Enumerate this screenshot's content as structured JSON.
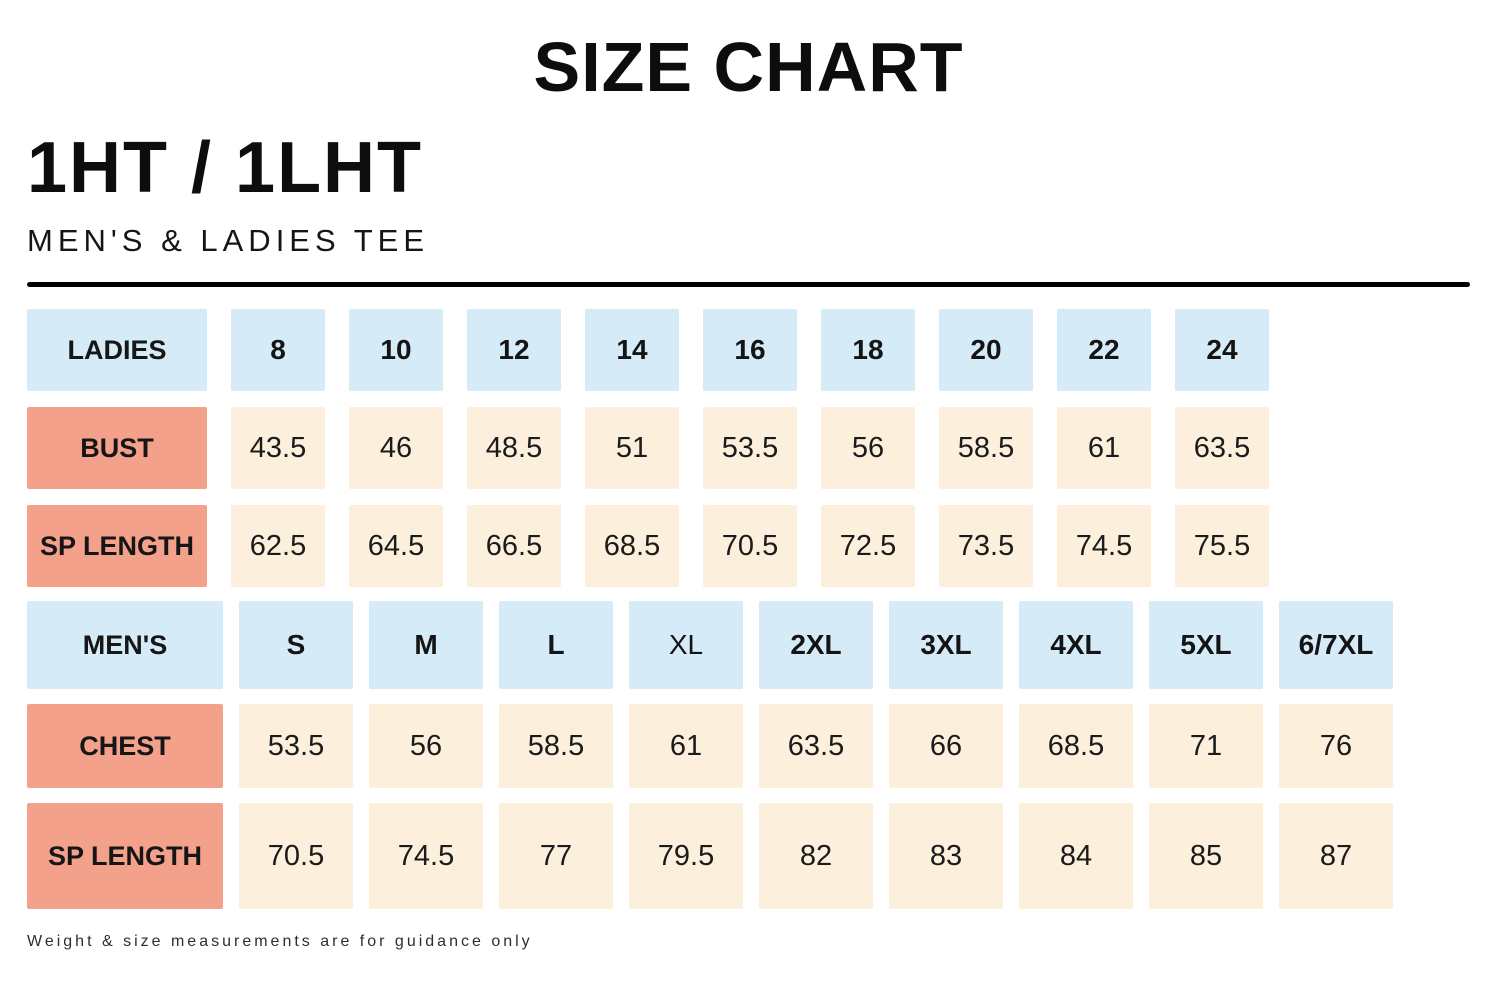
{
  "header": {
    "title": "SIZE CHART",
    "product_code": "1HT / 1LHT",
    "subtitle": "MEN'S & LADIES TEE"
  },
  "colors": {
    "size_header_cell": "#d5ebf8",
    "measurement_label_cell": "#f4a18c",
    "value_cell": "#fcf0dd",
    "text": "#111111",
    "divider": "#000000"
  },
  "ladies_table": {
    "size_row": {
      "label": "LADIES",
      "sizes": [
        "8",
        "10",
        "12",
        "14",
        "16",
        "18",
        "20",
        "22",
        "24"
      ]
    },
    "bust_row": {
      "label": "BUST",
      "values": [
        "43.5",
        "46",
        "48.5",
        "51",
        "53.5",
        "56",
        "58.5",
        "61",
        "63.5"
      ]
    },
    "sp_length_row": {
      "label": "SP LENGTH",
      "values": [
        "62.5",
        "64.5",
        "66.5",
        "68.5",
        "70.5",
        "72.5",
        "73.5",
        "74.5",
        "75.5"
      ]
    }
  },
  "mens_table": {
    "size_row": {
      "label": "MEN'S",
      "sizes": [
        "S",
        "M",
        "L",
        "XL",
        "2XL",
        "3XL",
        "4XL",
        "5XL",
        "6/7XL"
      ]
    },
    "chest_row": {
      "label": "CHEST",
      "values": [
        "53.5",
        "56",
        "58.5",
        "61",
        "63.5",
        "66",
        "68.5",
        "71",
        "76"
      ]
    },
    "sp_length_row": {
      "label": "SP LENGTH",
      "values": [
        "70.5",
        "74.5",
        "77",
        "79.5",
        "82",
        "83",
        "84",
        "85",
        "87"
      ]
    }
  },
  "footer": {
    "note": "Weight & size measurements are for guidance only"
  }
}
